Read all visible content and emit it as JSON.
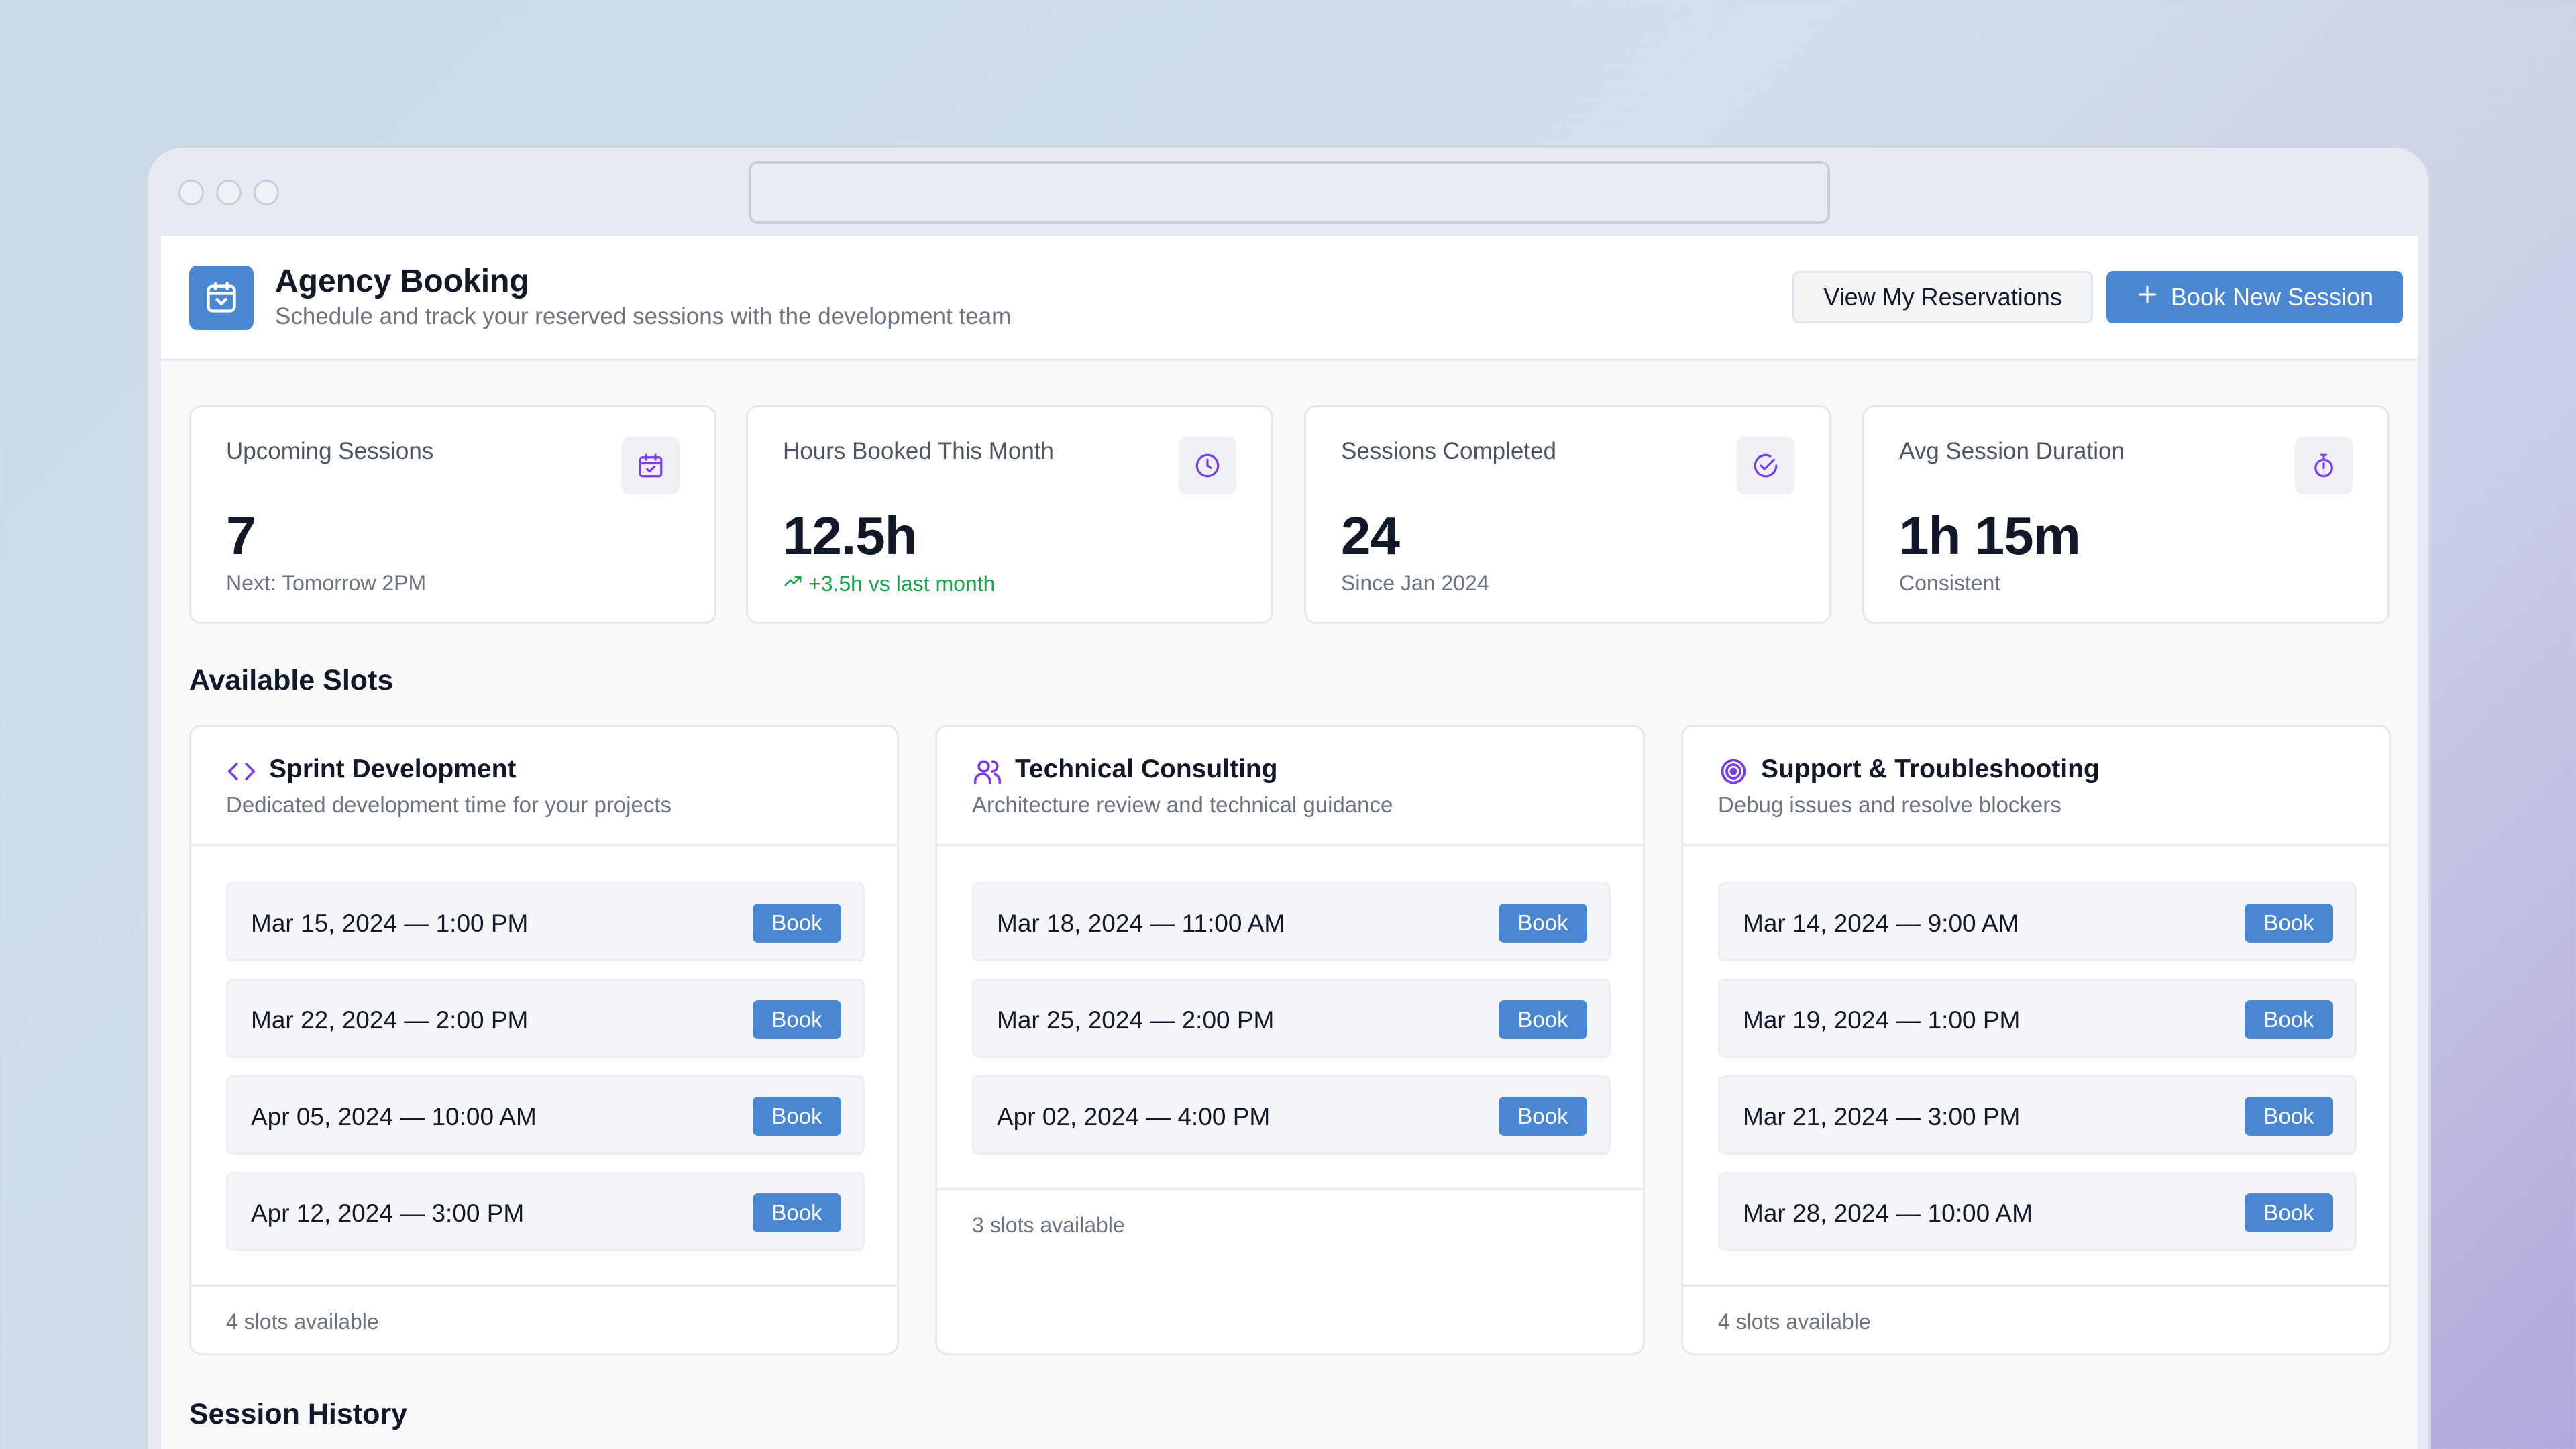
{
  "header": {
    "title": "Agency Booking",
    "subtitle": "Schedule and track your reserved sessions with the development team",
    "view_reservations_label": "View My Reservations",
    "book_new_label": "Book New Session"
  },
  "stats": [
    {
      "label": "Upcoming Sessions",
      "value": "7",
      "note": "Next: Tomorrow 2PM",
      "icon": "calendar-check-icon"
    },
    {
      "label": "Hours Booked This Month",
      "value": "12.5h",
      "note": "+3.5h vs last month",
      "icon": "clock-icon"
    },
    {
      "label": "Sessions Completed",
      "value": "24",
      "note": "Since Jan 2024",
      "icon": "check-circle-icon"
    },
    {
      "label": "Avg Session Duration",
      "value": "1h 15m",
      "note": "Consistent",
      "icon": "stopwatch-icon"
    }
  ],
  "available_slots": {
    "title": "Available Slots",
    "book_label": "Book",
    "cards": [
      {
        "title": "Sprint Development",
        "description": "Dedicated development time for your projects",
        "icon": "code-icon",
        "slots": [
          "Mar 15, 2024 — 1:00 PM",
          "Mar 22, 2024 — 2:00 PM",
          "Apr 05, 2024 — 10:00 AM",
          "Apr 12, 2024 — 3:00 PM"
        ],
        "footer": "4 slots available"
      },
      {
        "title": "Technical Consulting",
        "description": "Architecture review and technical guidance",
        "icon": "users-icon",
        "slots": [
          "Mar 18, 2024 — 11:00 AM",
          "Mar 25, 2024 — 2:00 PM",
          "Apr 02, 2024 — 4:00 PM"
        ],
        "footer": "3 slots available"
      },
      {
        "title": "Support & Troubleshooting",
        "description": "Debug issues and resolve blockers",
        "icon": "target-icon",
        "slots": [
          "Mar 14, 2024 — 9:00 AM",
          "Mar 19, 2024 — 1:00 PM",
          "Mar 21, 2024 — 3:00 PM",
          "Mar 28, 2024 — 10:00 AM"
        ],
        "footer": "4 slots available"
      }
    ]
  },
  "session_history": {
    "title": "Session History"
  },
  "colors": {
    "accent": "#4a86d2",
    "icon_purple": "#7c3aed",
    "positive": "#16a34a"
  }
}
